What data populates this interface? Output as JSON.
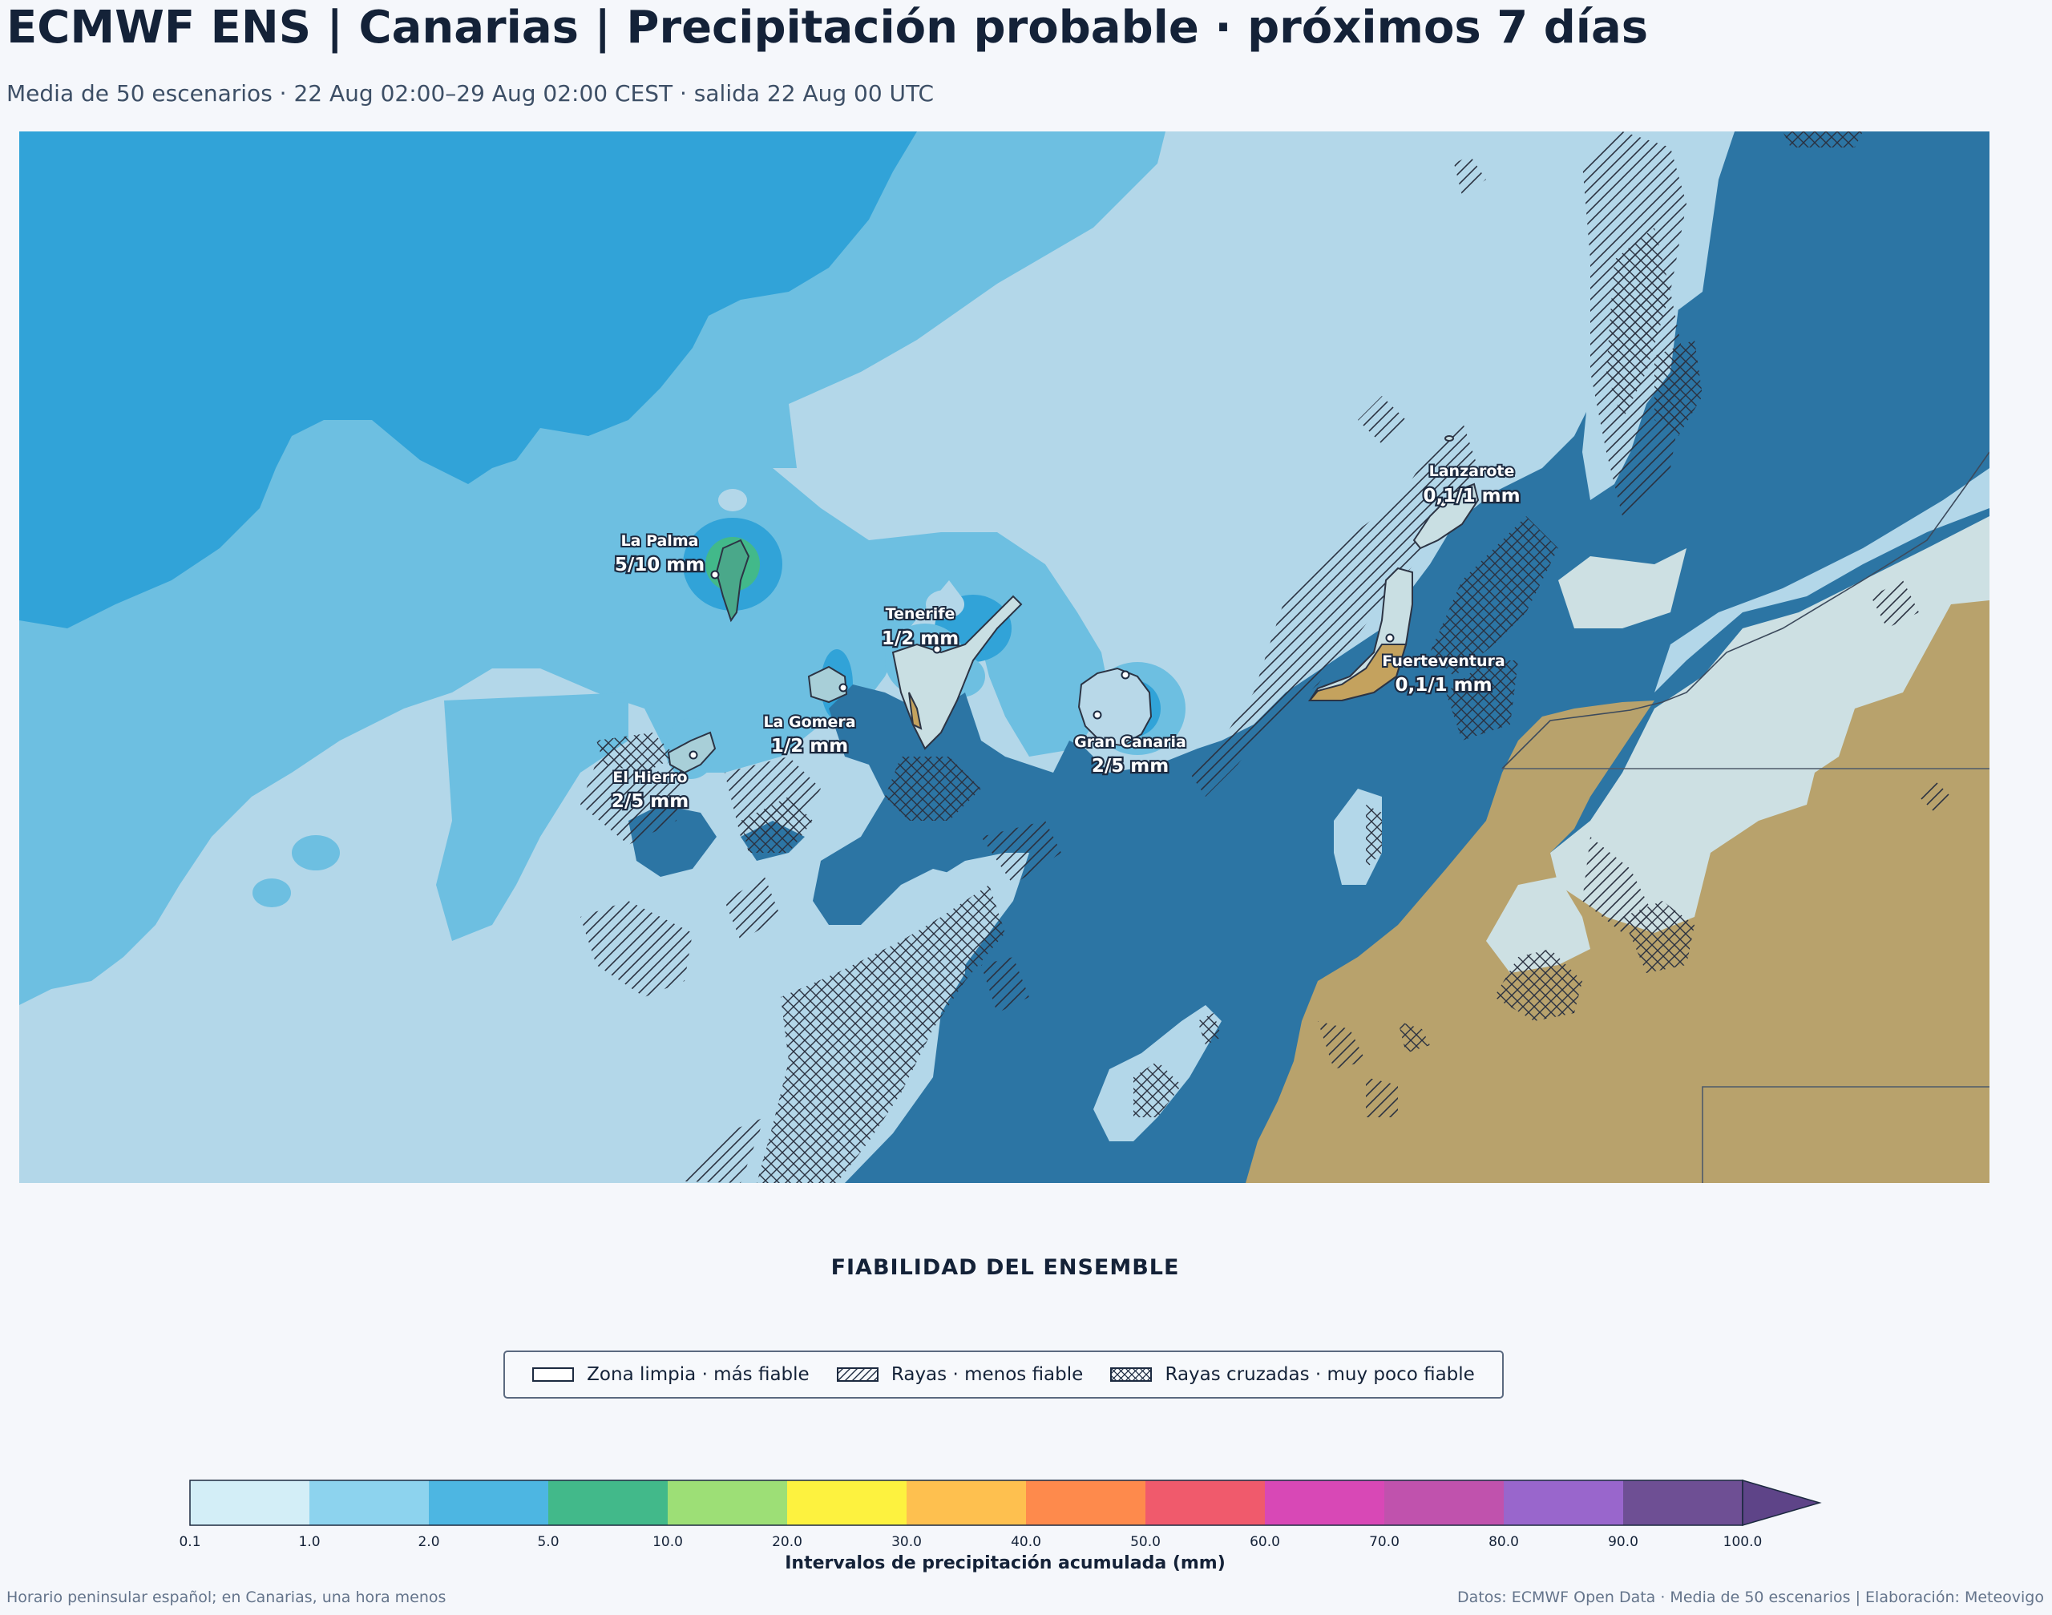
{
  "header": {
    "title": "ECMWF ENS | Canarias | Precipitación probable · próximos 7 días",
    "subtitle": "Media de 50 escenarios · 22 Aug 02:00–29 Aug 02:00 CEST · salida 22 Aug 00 UTC"
  },
  "map": {
    "islands": [
      {
        "name": "La Palma",
        "value": "5/10 mm"
      },
      {
        "name": "Tenerife",
        "value": "1/2 mm"
      },
      {
        "name": "La Gomera",
        "value": "1/2 mm"
      },
      {
        "name": "El Hierro",
        "value": "2/5 mm"
      },
      {
        "name": "Gran Canaria",
        "value": "2/5 mm"
      },
      {
        "name": "Lanzarote",
        "value": "0,1/1 mm"
      },
      {
        "name": "Fuerteventura",
        "value": "0,1/1 mm"
      }
    ],
    "colors": {
      "sea_01_1": "#b3d7e9",
      "sea_1_2": "#6dbfe1",
      "sea_2_5": "#31a3d8",
      "dry_below_01": "#2c75a4",
      "land_africa": "#b8a26c",
      "coast_light": "#cde0e3"
    }
  },
  "reliability": {
    "title": "FIABILIDAD DEL ENSEMBLE",
    "items": [
      {
        "label": "Zona limpia · más fiable",
        "pattern": "clean"
      },
      {
        "label": "Rayas · menos fiable",
        "pattern": "hatch"
      },
      {
        "label": "Rayas cruzadas · muy poco fiable",
        "pattern": "crosshatch"
      }
    ]
  },
  "colorbar": {
    "label": "Intervalos de precipitación acumulada (mm)",
    "ticks": [
      "0.1",
      "1.0",
      "2.0",
      "5.0",
      "10.0",
      "20.0",
      "30.0",
      "40.0",
      "50.0",
      "60.0",
      "70.0",
      "80.0",
      "90.0",
      "100.0"
    ],
    "colors": [
      "#d3eef7",
      "#8dd3ee",
      "#4db6e2",
      "#42b98a",
      "#9ddf76",
      "#fdf23f",
      "#fec04f",
      "#fe8a4c",
      "#f05a6c",
      "#d848b6",
      "#c052ad",
      "#9966cc",
      "#6e4f94"
    ],
    "extend_color": "#5e4488"
  },
  "footer": {
    "left": "Horario peninsular español; en Canarias, una hora menos",
    "right": "Datos: ECMWF Open Data · Media de 50 escenarios | Elaboración: Meteovigo"
  }
}
